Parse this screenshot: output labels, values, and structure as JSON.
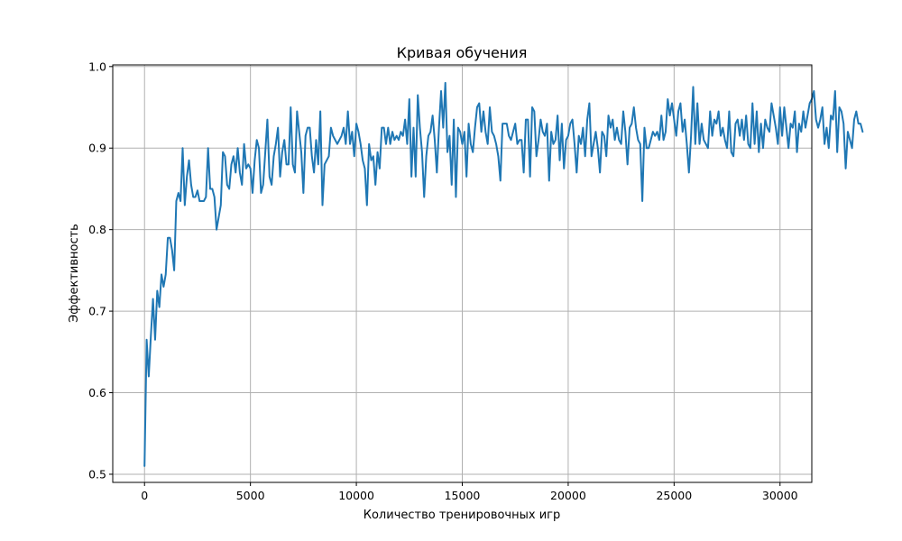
{
  "chart_data": {
    "type": "line",
    "title": "Кривая обучения",
    "xlabel": "Количество тренировочных игр",
    "ylabel": "Эффективность",
    "xlim": [
      -1500,
      31500
    ],
    "ylim": [
      0.49,
      1.002
    ],
    "xticks": [
      0,
      5000,
      10000,
      15000,
      20000,
      25000,
      30000
    ],
    "yticks": [
      0.5,
      0.6,
      0.7,
      0.8,
      0.9,
      1.0
    ],
    "xtick_labels": [
      "0",
      "5000",
      "10000",
      "15000",
      "20000",
      "25000",
      "30000"
    ],
    "ytick_labels": [
      "0.5",
      "0.6",
      "0.7",
      "0.8",
      "0.9",
      "1.0"
    ],
    "grid": true,
    "legend": "none",
    "series": [
      {
        "color": "#1f77b4",
        "x_start": 0,
        "x_step": 100,
        "values": [
          0.51,
          0.665,
          0.62,
          0.67,
          0.715,
          0.665,
          0.725,
          0.705,
          0.745,
          0.73,
          0.745,
          0.79,
          0.79,
          0.775,
          0.75,
          0.835,
          0.845,
          0.835,
          0.9,
          0.83,
          0.865,
          0.885,
          0.855,
          0.84,
          0.84,
          0.848,
          0.835,
          0.835,
          0.835,
          0.84,
          0.9,
          0.85,
          0.85,
          0.84,
          0.8,
          0.815,
          0.83,
          0.895,
          0.89,
          0.855,
          0.85,
          0.88,
          0.89,
          0.87,
          0.9,
          0.87,
          0.855,
          0.905,
          0.875,
          0.88,
          0.875,
          0.845,
          0.885,
          0.91,
          0.9,
          0.845,
          0.855,
          0.895,
          0.935,
          0.865,
          0.855,
          0.89,
          0.905,
          0.925,
          0.865,
          0.895,
          0.91,
          0.88,
          0.88,
          0.95,
          0.88,
          0.87,
          0.945,
          0.92,
          0.895,
          0.845,
          0.915,
          0.925,
          0.925,
          0.89,
          0.87,
          0.91,
          0.88,
          0.945,
          0.83,
          0.88,
          0.885,
          0.89,
          0.925,
          0.915,
          0.91,
          0.905,
          0.91,
          0.915,
          0.925,
          0.905,
          0.945,
          0.905,
          0.92,
          0.89,
          0.93,
          0.92,
          0.905,
          0.885,
          0.875,
          0.83,
          0.905,
          0.885,
          0.89,
          0.855,
          0.895,
          0.875,
          0.925,
          0.925,
          0.905,
          0.925,
          0.905,
          0.92,
          0.91,
          0.915,
          0.91,
          0.92,
          0.915,
          0.935,
          0.905,
          0.96,
          0.865,
          0.925,
          0.865,
          0.965,
          0.925,
          0.895,
          0.84,
          0.89,
          0.915,
          0.92,
          0.94,
          0.91,
          0.87,
          0.925,
          0.97,
          0.925,
          0.98,
          0.895,
          0.915,
          0.855,
          0.935,
          0.84,
          0.925,
          0.92,
          0.905,
          0.92,
          0.865,
          0.93,
          0.905,
          0.895,
          0.925,
          0.95,
          0.955,
          0.92,
          0.945,
          0.92,
          0.905,
          0.95,
          0.92,
          0.915,
          0.905,
          0.89,
          0.86,
          0.93,
          0.93,
          0.93,
          0.915,
          0.91,
          0.92,
          0.93,
          0.905,
          0.91,
          0.91,
          0.87,
          0.935,
          0.935,
          0.865,
          0.95,
          0.945,
          0.89,
          0.91,
          0.935,
          0.92,
          0.915,
          0.93,
          0.86,
          0.92,
          0.905,
          0.91,
          0.94,
          0.885,
          0.93,
          0.875,
          0.91,
          0.915,
          0.93,
          0.935,
          0.905,
          0.87,
          0.915,
          0.905,
          0.925,
          0.89,
          0.935,
          0.955,
          0.89,
          0.905,
          0.92,
          0.9,
          0.87,
          0.92,
          0.915,
          0.89,
          0.94,
          0.925,
          0.935,
          0.91,
          0.925,
          0.91,
          0.905,
          0.945,
          0.92,
          0.88,
          0.925,
          0.93,
          0.95,
          0.925,
          0.91,
          0.905,
          0.835,
          0.925,
          0.9,
          0.9,
          0.91,
          0.92,
          0.915,
          0.92,
          0.91,
          0.94,
          0.91,
          0.92,
          0.96,
          0.94,
          0.955,
          0.935,
          0.915,
          0.945,
          0.955,
          0.92,
          0.935,
          0.905,
          0.87,
          0.915,
          0.975,
          0.905,
          0.955,
          0.905,
          0.93,
          0.91,
          0.905,
          0.9,
          0.945,
          0.915,
          0.935,
          0.93,
          0.945,
          0.915,
          0.925,
          0.91,
          0.9,
          0.945,
          0.895,
          0.89,
          0.93,
          0.935,
          0.915,
          0.935,
          0.91,
          0.94,
          0.905,
          0.9,
          0.955,
          0.905,
          0.945,
          0.895,
          0.93,
          0.9,
          0.935,
          0.925,
          0.92,
          0.955,
          0.94,
          0.925,
          0.905,
          0.95,
          0.915,
          0.95,
          0.925,
          0.9,
          0.93,
          0.925,
          0.945,
          0.895,
          0.93,
          0.92,
          0.945,
          0.925,
          0.94,
          0.955,
          0.96,
          0.97,
          0.935,
          0.925,
          0.935,
          0.95,
          0.905,
          0.925,
          0.9,
          0.94,
          0.935,
          0.97,
          0.895,
          0.95,
          0.945,
          0.93,
          0.875,
          0.92,
          0.91,
          0.9,
          0.935,
          0.945,
          0.93,
          0.93,
          0.92
        ]
      }
    ]
  }
}
